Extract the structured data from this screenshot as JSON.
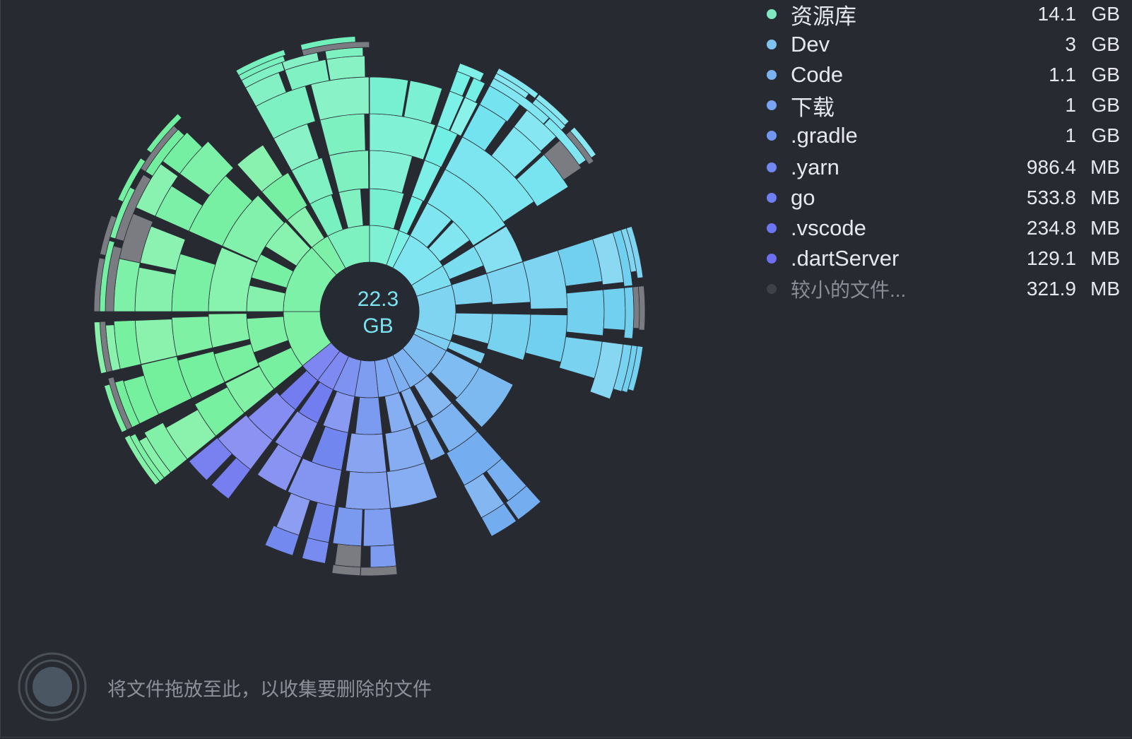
{
  "total": {
    "value": "22.3",
    "unit": "GB"
  },
  "legend": [
    {
      "name": "资源库",
      "size": "14.1",
      "unit": "GB",
      "color": "#7fe8c0"
    },
    {
      "name": "Dev",
      "size": "3",
      "unit": "GB",
      "color": "#7fc4ee"
    },
    {
      "name": "Code",
      "size": "1.1",
      "unit": "GB",
      "color": "#7bb2f0"
    },
    {
      "name": "下载",
      "size": "1",
      "unit": "GB",
      "color": "#78a4f2"
    },
    {
      "name": ".gradle",
      "size": "1",
      "unit": "GB",
      "color": "#7496f3"
    },
    {
      "name": ".yarn",
      "size": "986.4",
      "unit": "MB",
      "color": "#7188f3"
    },
    {
      "name": "go",
      "size": "533.8",
      "unit": "MB",
      "color": "#6f7ef3"
    },
    {
      "name": ".vscode",
      "size": "234.8",
      "unit": "MB",
      "color": "#6d76f2"
    },
    {
      "name": ".dartServer",
      "size": "129.1",
      "unit": "MB",
      "color": "#6b6ff0"
    },
    {
      "name": "较小的文件...",
      "size": "321.9",
      "unit": "MB",
      "color": "#3f4148"
    }
  ],
  "drop_hint": "将文件拖放至此，以收集要删除的文件"
}
